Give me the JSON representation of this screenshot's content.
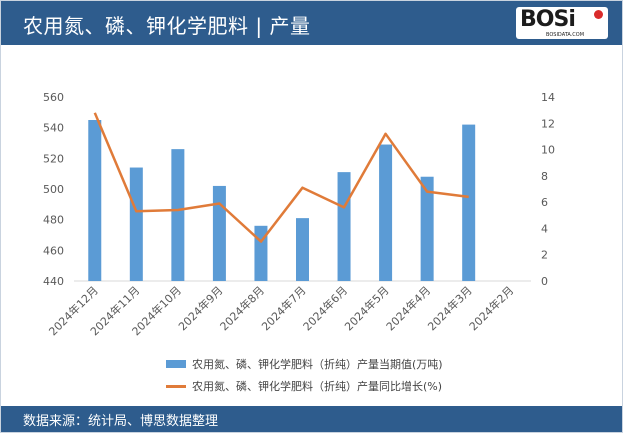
{
  "header": {
    "title": "农用氮、磷、钾化学肥料 | 产量"
  },
  "logo": {
    "text": "BOSi",
    "subtext": "BOSIDATA.COM"
  },
  "footer": {
    "source": "数据来源：统计局、博思数据整理"
  },
  "colors": {
    "header_bg": "#2e5c8d",
    "bar": "#5b9bd5",
    "line": "#e07b39",
    "grid": "#d9d9d9",
    "axis_text": "#595959"
  },
  "chart_data": {
    "type": "bar",
    "categories": [
      "2024年12月",
      "2024年11月",
      "2024年10月",
      "2024年9月",
      "2024年8月",
      "2024年7月",
      "2024年6月",
      "2024年5月",
      "2024年4月",
      "2024年3月",
      "2024年2月"
    ],
    "series": [
      {
        "name": "农用氮、磷、钾化学肥料（折纯）产量当期值(万吨)",
        "type": "bar",
        "axis": "left",
        "values": [
          545,
          514,
          526,
          502,
          476,
          481,
          511,
          529,
          508,
          542,
          null
        ]
      },
      {
        "name": "农用氮、磷、钾化学肥料（折纯）产量同比增长(%)",
        "type": "line",
        "axis": "right",
        "values": [
          12.8,
          5.3,
          5.4,
          5.9,
          3.0,
          7.1,
          5.6,
          11.2,
          6.8,
          6.4,
          null
        ]
      }
    ],
    "y_left": {
      "min": 440,
      "max": 560,
      "ticks": [
        440,
        460,
        480,
        500,
        520,
        540,
        560
      ]
    },
    "y_right": {
      "min": 0,
      "max": 14,
      "ticks": [
        0,
        2,
        4,
        6,
        8,
        10,
        12,
        14
      ]
    },
    "grid": false,
    "legend_position": "bottom"
  }
}
